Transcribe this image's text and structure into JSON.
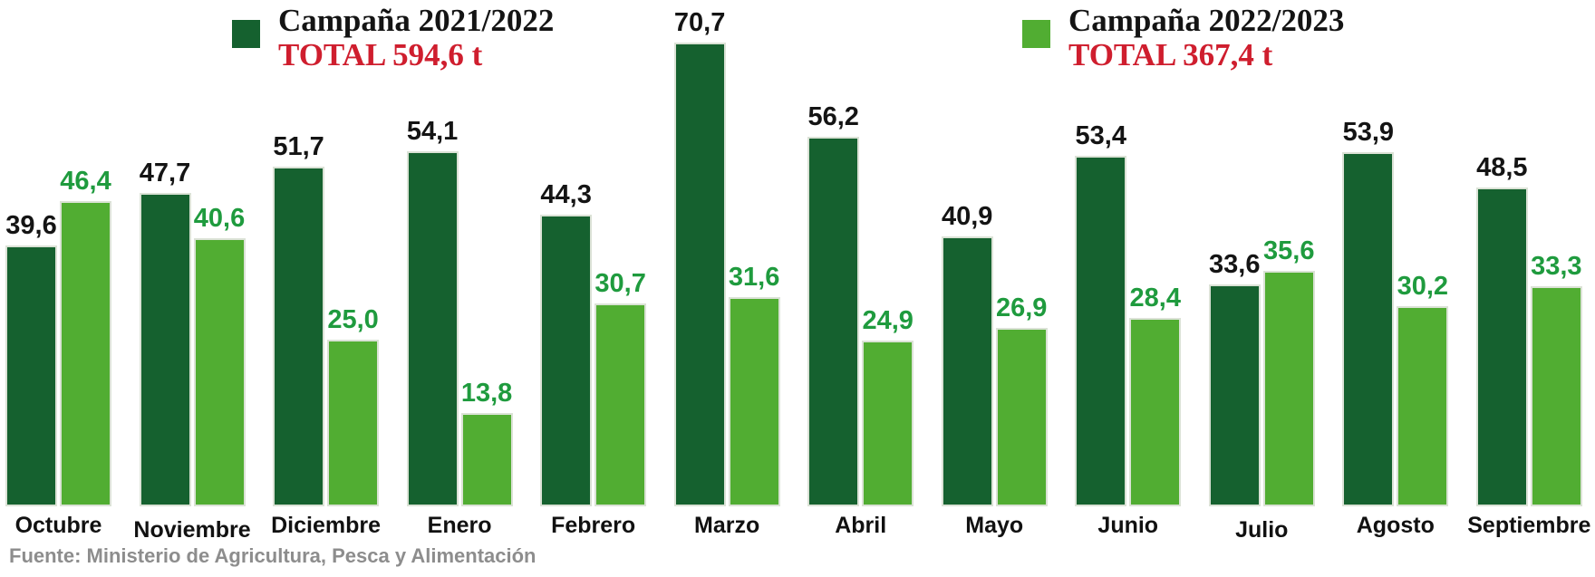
{
  "chart_data": {
    "type": "bar",
    "title": "",
    "categories": [
      "Octubre",
      "Noviembre",
      "Diciembre",
      "Enero",
      "Febrero",
      "Marzo",
      "Abril",
      "Mayo",
      "Junio",
      "Julio",
      "Agosto",
      "Septiembre"
    ],
    "series": [
      {
        "name": "Campaña 2021/2022",
        "total_label": "TOTAL 594,6 t",
        "color": "#15612f",
        "label_color": "#141414",
        "values": [
          39.6,
          47.7,
          51.7,
          54.1,
          44.3,
          70.7,
          56.2,
          40.9,
          53.4,
          33.6,
          53.9,
          48.5
        ],
        "labels": [
          "39,6",
          "47,7",
          "51,7",
          "54,1",
          "44,3",
          "70,7",
          "56,2",
          "40,9",
          "53,4",
          "33,6",
          "53,9",
          "48,5"
        ]
      },
      {
        "name": "Campaña 2022/2023",
        "total_label": "TOTAL 367,4 t",
        "color": "#51ad32",
        "label_color": "#1f9b3e",
        "values": [
          46.4,
          40.6,
          25.0,
          13.8,
          30.7,
          31.6,
          24.9,
          26.9,
          28.4,
          35.6,
          30.2,
          33.3
        ],
        "labels": [
          "46,4",
          "40,6",
          "25,0",
          "13,8",
          "30,7",
          "31,6",
          "24,9",
          "26,9",
          "28,4",
          "35,6",
          "30,2",
          "33,3"
        ]
      }
    ],
    "ylim": [
      0,
      71
    ],
    "grid": false,
    "legend_position": "top",
    "xlabel": "",
    "ylabel": ""
  },
  "accent_colors": {
    "total_red": "#cf1e2e",
    "source_gray": "#8d8d8d"
  },
  "source": "Fuente: Ministerio de Agricultura, Pesca y Alimentación"
}
